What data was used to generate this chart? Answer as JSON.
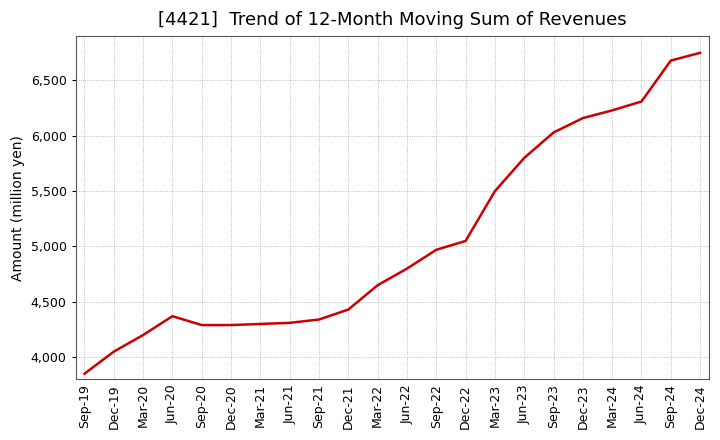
{
  "title": "[4421]  Trend of 12-Month Moving Sum of Revenues",
  "ylabel": "Amount (million yen)",
  "line_color": "#cc0000",
  "background_color": "#ffffff",
  "grid_color": "#aaaaaa",
  "x_labels": [
    "Sep-19",
    "Dec-19",
    "Mar-20",
    "Jun-20",
    "Sep-20",
    "Dec-20",
    "Mar-21",
    "Jun-21",
    "Sep-21",
    "Dec-21",
    "Mar-22",
    "Jun-22",
    "Sep-22",
    "Dec-22",
    "Mar-23",
    "Jun-23",
    "Sep-23",
    "Dec-23",
    "Mar-24",
    "Jun-24",
    "Sep-24",
    "Dec-24"
  ],
  "y_values": [
    3850,
    4050,
    4200,
    4370,
    4290,
    4290,
    4300,
    4310,
    4340,
    4430,
    4650,
    4800,
    4970,
    5050,
    5500,
    5800,
    6030,
    6160,
    6230,
    6310,
    6680,
    6750
  ],
  "ylim": [
    3800,
    6900
  ],
  "yticks": [
    4000,
    4500,
    5000,
    5500,
    6000,
    6500
  ],
  "title_fontsize": 13,
  "ylabel_fontsize": 10,
  "tick_fontsize": 9
}
